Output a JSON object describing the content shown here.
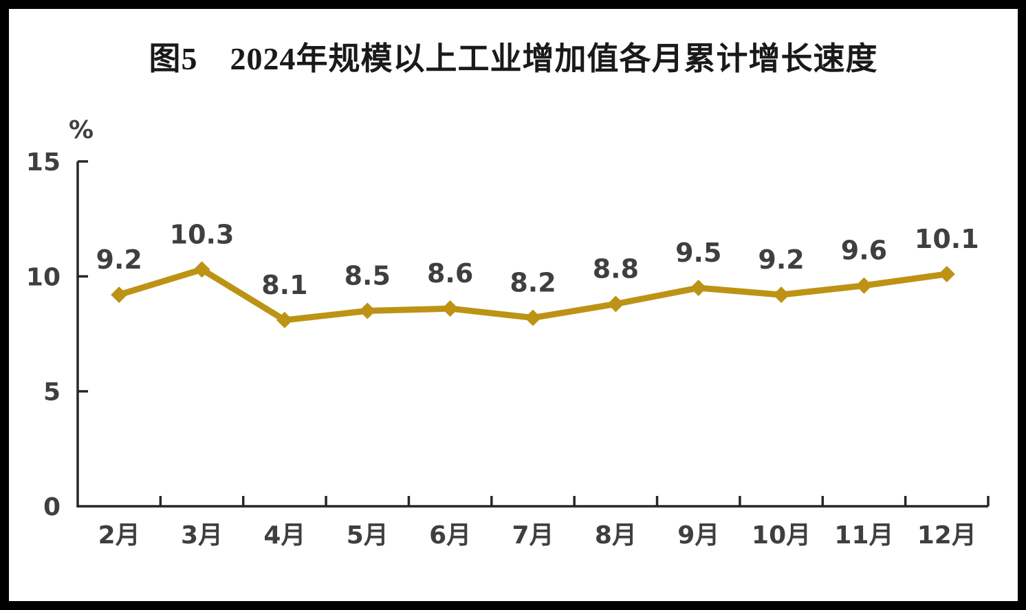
{
  "page": {
    "title": "图5　2024年规模以上工业增加值各月累计增长速度"
  },
  "chart_data": {
    "type": "line",
    "title": "图5　2024年规模以上工业增加值各月累计增长速度",
    "categories": [
      "2月",
      "3月",
      "4月",
      "5月",
      "6月",
      "7月",
      "8月",
      "9月",
      "10月",
      "11月",
      "12月"
    ],
    "values": [
      9.2,
      10.3,
      8.1,
      8.5,
      8.6,
      8.2,
      8.8,
      9.5,
      9.2,
      9.6,
      10.1
    ],
    "unit_label": "%",
    "xlabel": "",
    "ylabel": "%",
    "ylim": [
      0,
      15
    ],
    "y_ticks": [
      0,
      5,
      10,
      15
    ],
    "grid": false,
    "legend_position": "none",
    "data_labels": true,
    "marker": "diamond",
    "line_color": "#BD9315",
    "label_color": "#3F3F3F",
    "axis_color": "#262626",
    "title_color": "#1A1A1A",
    "background_color": "#FFFFFF",
    "frame_color": "#000000"
  }
}
